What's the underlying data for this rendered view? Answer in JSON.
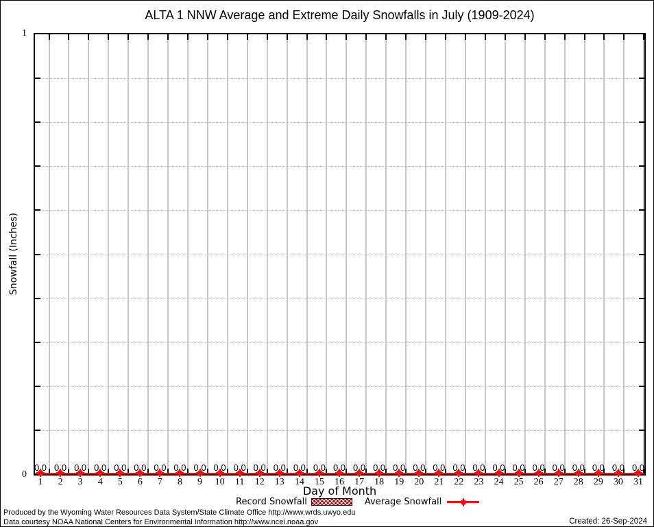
{
  "chart_data": {
    "type": "line",
    "title": "ALTA 1 NNW Average and Extreme Daily Snowfalls in July (1909-2024)",
    "xlabel": "Day of Month",
    "ylabel": "Snowfall (Inches)",
    "ylim": [
      0,
      1
    ],
    "y_minor_tick_step": 0.1,
    "grid": "vertical solid line per day; dotted horizontal line every 0.1",
    "legend_position": "bottom-center",
    "categories": [
      1,
      2,
      3,
      4,
      5,
      6,
      7,
      8,
      9,
      10,
      11,
      12,
      13,
      14,
      15,
      16,
      17,
      18,
      19,
      20,
      21,
      22,
      23,
      24,
      25,
      26,
      27,
      28,
      29,
      30,
      31
    ],
    "series": [
      {
        "name": "Record Snowfall",
        "style": "crosshatched-boxes",
        "color": "#8e0f0f",
        "values": [
          0,
          0,
          0,
          0,
          0,
          0,
          0,
          0,
          0,
          0,
          0,
          0,
          0,
          0,
          0,
          0,
          0,
          0,
          0,
          0,
          0,
          0,
          0,
          0,
          0,
          0,
          0,
          0,
          0,
          0,
          0
        ]
      },
      {
        "name": "Average Snowfall",
        "style": "line-with-points",
        "color": "#ee1111",
        "values": [
          0,
          0,
          0,
          0,
          0,
          0,
          0,
          0,
          0,
          0,
          0,
          0,
          0,
          0,
          0,
          0,
          0,
          0,
          0,
          0,
          0,
          0,
          0,
          0,
          0,
          0,
          0,
          0,
          0,
          0,
          0
        ]
      }
    ],
    "point_value_labels": [
      "0.0",
      "0.0",
      "0.0",
      "0.0",
      "0.0",
      "0.0",
      "0.0",
      "0.0",
      "0.0",
      "0.0",
      "0.0",
      "0.0",
      "0.0",
      "0.0",
      "0.0",
      "0.0",
      "0.0",
      "0.0",
      "0.0",
      "0.0",
      "0.0",
      "0.0",
      "0.0",
      "0.0",
      "0.0",
      "0.0",
      "0.0",
      "0.0",
      "0.0",
      "0.0",
      "0.0"
    ]
  },
  "axis": {
    "y_top_label": "1",
    "y_bottom_label": "0"
  },
  "colors": {
    "average_line": "#ee1111",
    "record_fill": "#8e0f0f",
    "grid_vertical": "#c6c6c6",
    "grid_horizontal": "#bdbdbd",
    "axis": "#000000"
  },
  "footer": {
    "produced_by": "Produced by the Wyoming Water Resources Data System/State Climate Office http://www.wrds.uwyo.edu",
    "data_courtesy": "Data courtesy NOAA National Centers for Environmental Information http://www.ncei.noaa.gov",
    "created": "Created: 26-Sep-2024"
  }
}
